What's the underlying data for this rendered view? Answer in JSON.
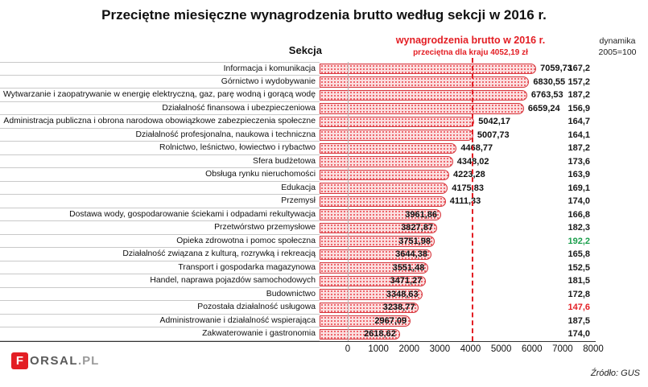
{
  "columns": {
    "section": "Sekcja",
    "wages_header": "wynagrodzenia brutto w 2016 r.",
    "average_note": "przeciętna dla kraju 4052,19 zł",
    "dynamics_line1": "dynamika",
    "dynamics_line2": "2005=100"
  },
  "logo": {
    "letter": "F",
    "name": "ORSAL",
    "tld": ".PL"
  },
  "source": "Źródło: GUS",
  "colors": {
    "accent_red": "#e31e24",
    "bar_fill": "#fbdfe0",
    "bar_dot": "#ee666c",
    "bar_border": "#d5353c",
    "positive_green": "#1a9e4b",
    "negative_red": "#e31e24",
    "dyn_default": "#1a1a1a"
  },
  "chart_data": {
    "type": "bar",
    "orientation": "horizontal",
    "title": "Przeciętne miesięczne wynagrodzenia brutto według sekcji w 2016 r.",
    "xlabel": "",
    "ylabel": "Sekcja",
    "xlim": [
      0,
      8000
    ],
    "x_ticks": [
      0,
      1000,
      2000,
      3000,
      4000,
      5000,
      6000,
      7000,
      8000
    ],
    "grid": false,
    "legend": false,
    "average_value": 4052.19,
    "average_label": "przeciętna dla kraju 4052,19 zł",
    "value_series_name": "wynagrodzenia brutto w 2016 r.",
    "dynamics_series_name": "dynamika 2005=100",
    "rows": [
      {
        "label": "Informacja i komunikacja",
        "value": 7059.73,
        "value_label": "7059,73",
        "dynamics": "167,2",
        "dynamics_color": "default"
      },
      {
        "label": "Górnictwo i wydobywanie",
        "value": 6830.55,
        "value_label": "6830,55",
        "dynamics": "157,2",
        "dynamics_color": "default"
      },
      {
        "label": "Wytwarzanie i zaopatrywanie w energię elektryczną, gaz, parę wodną i gorącą wodę",
        "value": 6763.53,
        "value_label": "6763,53",
        "dynamics": "187,2",
        "dynamics_color": "default"
      },
      {
        "label": "Działalność finansowa i ubezpieczeniowa",
        "value": 6659.24,
        "value_label": "6659,24",
        "dynamics": "156,9",
        "dynamics_color": "default"
      },
      {
        "label": "Administracja publiczna i obrona narodowa obowiązkowe zabezpieczenia społeczne",
        "value": 5042.17,
        "value_label": "5042,17",
        "dynamics": "164,7",
        "dynamics_color": "default"
      },
      {
        "label": "Działalność profesjonalna, naukowa i techniczna",
        "value": 5007.73,
        "value_label": "5007,73",
        "dynamics": "164,1",
        "dynamics_color": "default"
      },
      {
        "label": "Rolnictwo, leśnictwo, łowiectwo i rybactwo",
        "value": 4468.77,
        "value_label": "4468,77",
        "dynamics": "187,2",
        "dynamics_color": "default"
      },
      {
        "label": "Sfera budżetowa",
        "value": 4348.02,
        "value_label": "4348,02",
        "dynamics": "173,6",
        "dynamics_color": "default"
      },
      {
        "label": "Obsługa rynku nieruchomości",
        "value": 4223.28,
        "value_label": "4223,28",
        "dynamics": "163,9",
        "dynamics_color": "default"
      },
      {
        "label": "Edukacja",
        "value": 4175.83,
        "value_label": "4175,83",
        "dynamics": "169,1",
        "dynamics_color": "default"
      },
      {
        "label": "Przemysł",
        "value": 4111.33,
        "value_label": "4111,33",
        "dynamics": "174,0",
        "dynamics_color": "default"
      },
      {
        "label": "Dostawa wody, gospodarowanie ściekami i odpadami rekultywacja",
        "value": 3961.86,
        "value_label": "3961,86",
        "dynamics": "166,8",
        "dynamics_color": "default"
      },
      {
        "label": "Przetwórstwo przemysłowe",
        "value": 3827.87,
        "value_label": "3827,87",
        "dynamics": "182,3",
        "dynamics_color": "default"
      },
      {
        "label": "Opieka zdrowotna i pomoc społeczna",
        "value": 3751.98,
        "value_label": "3751,98",
        "dynamics": "192,2",
        "dynamics_color": "green"
      },
      {
        "label": "Działalność związana z kulturą, rozrywką i rekreacją",
        "value": 3644.38,
        "value_label": "3644,38",
        "dynamics": "165,8",
        "dynamics_color": "default"
      },
      {
        "label": "Transport i gospodarka magazynowa",
        "value": 3551.48,
        "value_label": "3551,48",
        "dynamics": "152,5",
        "dynamics_color": "default"
      },
      {
        "label": "Handel, naprawa pojazdów samochodowych",
        "value": 3471.27,
        "value_label": "3471,27",
        "dynamics": "181,5",
        "dynamics_color": "default"
      },
      {
        "label": "Budownictwo",
        "value": 3348.63,
        "value_label": "3348,63",
        "dynamics": "172,8",
        "dynamics_color": "default"
      },
      {
        "label": "Pozostała działalność usługowa",
        "value": 3238.77,
        "value_label": "3238,77",
        "dynamics": "147,6",
        "dynamics_color": "red"
      },
      {
        "label": "Administrowanie i działalność wspierająca",
        "value": 2967.09,
        "value_label": "2967,09",
        "dynamics": "187,5",
        "dynamics_color": "default"
      },
      {
        "label": "Zakwaterowanie i gastronomia",
        "value": 2618.62,
        "value_label": "2618,62",
        "dynamics": "174,0",
        "dynamics_color": "default"
      }
    ]
  }
}
